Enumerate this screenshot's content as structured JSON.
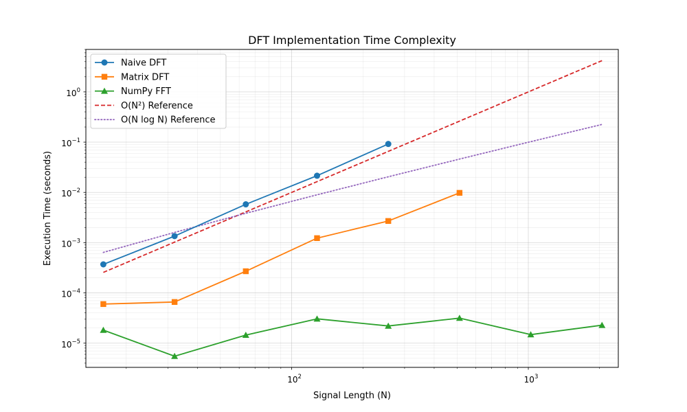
{
  "chart_data": {
    "type": "line",
    "title": "DFT Implementation Time Complexity",
    "xlabel": "Signal Length (N)",
    "ylabel": "Execution Time (seconds)",
    "xscale": "log",
    "yscale": "log",
    "xlim": [
      13.5,
      2400
    ],
    "ylim": [
      3.3e-06,
      7
    ],
    "grid": "on (major and minor)",
    "legend_position": "upper-left",
    "x_ticks": [
      {
        "value": 100,
        "base": "10",
        "exp": "2"
      },
      {
        "value": 1000,
        "base": "10",
        "exp": "3"
      }
    ],
    "y_ticks": [
      {
        "value": 1e-05,
        "base": "10",
        "exp": "−5"
      },
      {
        "value": 0.0001,
        "base": "10",
        "exp": "−4"
      },
      {
        "value": 0.001,
        "base": "10",
        "exp": "−3"
      },
      {
        "value": 0.01,
        "base": "10",
        "exp": "−2"
      },
      {
        "value": 0.1,
        "base": "10",
        "exp": "−1"
      },
      {
        "value": 1,
        "base": "10",
        "exp": "0"
      }
    ],
    "series": [
      {
        "name": "Naive DFT",
        "color": "#1f77b4",
        "line": "solid",
        "marker": "circle",
        "x": [
          16,
          32,
          64,
          128,
          256
        ],
        "y": [
          0.00037,
          0.00135,
          0.0058,
          0.0215,
          0.092
        ]
      },
      {
        "name": "Matrix DFT",
        "color": "#ff7f0e",
        "line": "solid",
        "marker": "square",
        "x": [
          16,
          32,
          64,
          128,
          256,
          512
        ],
        "y": [
          6e-05,
          6.6e-05,
          0.00027,
          0.00123,
          0.0027,
          0.0098
        ]
      },
      {
        "name": "NumPy FFT",
        "color": "#2ca02c",
        "line": "solid",
        "marker": "triangle",
        "x": [
          16,
          32,
          64,
          128,
          256,
          512,
          1024,
          2048
        ],
        "y": [
          1.82e-05,
          5.5e-06,
          1.45e-05,
          3.05e-05,
          2.2e-05,
          3.15e-05,
          1.48e-05,
          2.28e-05
        ]
      },
      {
        "name": "O(N²) Reference",
        "color": "#d62728",
        "line": "dashed",
        "marker": "none",
        "x": [
          16,
          32,
          64,
          128,
          256,
          512,
          1024,
          2048
        ],
        "y": [
          0.000256,
          0.001024,
          0.004096,
          0.016384,
          0.065536,
          0.262144,
          1.048576,
          4.194304
        ]
      },
      {
        "name": "O(N log N) Reference",
        "color": "#9467bd",
        "line": "dotted",
        "marker": "none",
        "x": [
          16,
          32,
          64,
          128,
          256,
          512,
          1024,
          2048
        ],
        "y": [
          0.00064,
          0.0016,
          0.00384,
          0.00896,
          0.02048,
          0.04608,
          0.1024,
          0.22528
        ]
      }
    ]
  }
}
